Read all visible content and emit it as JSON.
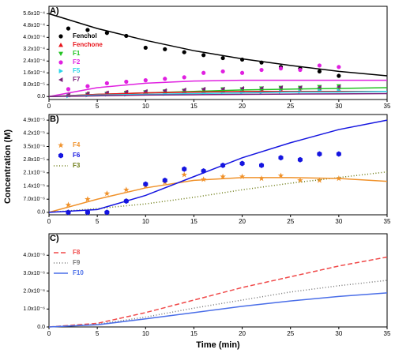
{
  "axis_labels": {
    "x": "Time (min)",
    "y": "Concentration (M)"
  },
  "chart_data": [
    {
      "type": "scatter",
      "panel_label": "A)",
      "xlim": [
        0,
        35
      ],
      "xticks": [
        0,
        5,
        10,
        15,
        20,
        25,
        30,
        35
      ],
      "ylim": [
        -2e-05,
        0.00061
      ],
      "yticks": [
        {
          "value": 0,
          "label": "0.0"
        },
        {
          "value": 8e-05,
          "label": "8.0x10⁻⁵"
        },
        {
          "value": 0.00016,
          "label": "1.6x10⁻⁴"
        },
        {
          "value": 0.00024,
          "label": "2.4x10⁻⁴"
        },
        {
          "value": 0.00032,
          "label": "3.2x10⁻⁴"
        },
        {
          "value": 0.0004,
          "label": "4.0x10⁻⁴"
        },
        {
          "value": 0.00048,
          "label": "4.8x10⁻⁴"
        },
        {
          "value": 0.00056,
          "label": "5.6x10⁻⁴"
        }
      ],
      "series": [
        {
          "name": "Fenchol",
          "color": "#000000",
          "marker": "circle",
          "x": [
            2,
            4,
            6,
            8,
            10,
            12,
            14,
            16,
            18,
            20,
            22,
            24,
            26,
            28,
            30
          ],
          "values": [
            0.00046,
            0.00045,
            0.00043,
            0.00041,
            0.00033,
            0.00032,
            0.0003,
            0.00028,
            0.00026,
            0.00025,
            0.00023,
            0.0002,
            0.00019,
            0.00017,
            0.00014
          ]
        },
        {
          "name": "Fenchone",
          "color": "#e8141b",
          "marker": "triangle",
          "x": [
            2,
            4,
            6,
            8,
            10,
            12,
            14,
            16,
            18,
            20,
            22,
            24,
            26,
            28,
            30
          ],
          "values": [
            1.5e-05,
            2e-05,
            2.5e-05,
            3e-05,
            3e-05,
            3.5e-05,
            3.5e-05,
            4e-05,
            4e-05,
            4e-05,
            4e-05,
            4.5e-05,
            4e-05,
            4.5e-05,
            4.5e-05
          ]
        },
        {
          "name": "F1",
          "color": "#22c322",
          "marker": "triangle-down",
          "x": [
            2,
            4,
            6,
            8,
            10,
            12,
            14,
            16,
            18,
            20,
            22,
            24,
            26,
            28,
            30
          ],
          "values": [
            1e-05,
            1.5e-05,
            2e-05,
            2.5e-05,
            3e-05,
            3.5e-05,
            4e-05,
            4.5e-05,
            5e-05,
            5e-05,
            5.5e-05,
            6e-05,
            6e-05,
            6.5e-05,
            7e-05
          ]
        },
        {
          "name": "F2",
          "color": "#e020e0",
          "marker": "circle",
          "x": [
            2,
            4,
            6,
            8,
            10,
            12,
            14,
            16,
            18,
            20,
            22,
            24,
            26,
            28,
            30
          ],
          "values": [
            5e-05,
            7e-05,
            9e-05,
            0.0001,
            0.00011,
            0.00012,
            0.00013,
            0.00016,
            0.00017,
            0.00016,
            0.00018,
            0.00019,
            0.00018,
            0.00021,
            0.0002
          ]
        },
        {
          "name": "F5",
          "color": "#2ad4e8",
          "marker": "triangle-right",
          "x": [
            2,
            4,
            6,
            8,
            10,
            12,
            14,
            16,
            18,
            20,
            22,
            24,
            26,
            28,
            30
          ],
          "values": [
            5e-06,
            1e-05,
            1.5e-05,
            1.5e-05,
            2e-05,
            2e-05,
            2.5e-05,
            2.5e-05,
            3e-05,
            3e-05,
            3e-05,
            3.5e-05,
            3.5e-05,
            4e-05,
            4e-05
          ]
        },
        {
          "name": "F7",
          "color": "#7a1f7a",
          "marker": "triangle-left",
          "x": [
            2,
            4,
            6,
            8,
            10,
            12,
            14,
            16,
            18,
            20,
            22,
            24,
            26,
            28,
            30
          ],
          "values": [
            1e-05,
            2e-05,
            2.5e-05,
            3e-05,
            3.5e-05,
            4e-05,
            4.5e-05,
            5e-05,
            5e-05,
            5.5e-05,
            5.5e-05,
            6e-05,
            6e-05,
            6e-05,
            6.5e-05
          ]
        },
        {
          "color": "#000000",
          "style": "solid",
          "x": [
            0,
            5,
            10,
            15,
            20,
            25,
            30,
            35
          ],
          "values": [
            0.00056,
            0.00046,
            0.00038,
            0.00031,
            0.000255,
            0.00021,
            0.00017,
            0.00014
          ]
        },
        {
          "color": "#e020e0",
          "style": "solid",
          "x": [
            0,
            5,
            10,
            15,
            20,
            25,
            30,
            35
          ],
          "values": [
            0,
            6e-05,
            9e-05,
            0.000105,
            0.00011,
            0.00011,
            0.00011,
            0.00011
          ]
        },
        {
          "color": "#22c322",
          "style": "solid",
          "x": [
            0,
            5,
            10,
            15,
            20,
            25,
            30,
            35
          ],
          "values": [
            0,
            1.5e-05,
            2.5e-05,
            3.5e-05,
            4.5e-05,
            5e-05,
            5.5e-05,
            6e-05
          ]
        },
        {
          "color": "#e8141b",
          "style": "solid",
          "x": [
            0,
            5,
            10,
            15,
            20,
            25,
            30,
            35
          ],
          "values": [
            0,
            1.5e-05,
            2.5e-05,
            3e-05,
            3.5e-05,
            3.5e-05,
            3.5e-05,
            3.5e-05
          ]
        },
        {
          "color": "#2ad4e8",
          "style": "solid",
          "x": [
            0,
            5,
            10,
            15,
            20,
            25,
            30,
            35
          ],
          "values": [
            0,
            1e-05,
            1.5e-05,
            2e-05,
            2.5e-05,
            3e-05,
            3e-05,
            3.5e-05
          ]
        },
        {
          "color": "#7a1f7a",
          "style": "solid",
          "x": [
            0,
            5,
            10,
            15,
            20,
            25,
            30,
            35
          ],
          "values": [
            0,
            5e-06,
            1e-05,
            1.2e-05,
            1.5e-05,
            1.7e-05,
            1.8e-05,
            2e-05
          ]
        }
      ]
    },
    {
      "type": "scatter",
      "panel_label": "B)",
      "xlim": [
        0,
        35
      ],
      "xticks": [
        0,
        5,
        10,
        15,
        20,
        25,
        30,
        35
      ],
      "ylim": [
        -1.3e-06,
        5.2e-05
      ],
      "yticks": [
        {
          "value": 0,
          "label": "0.0"
        },
        {
          "value": 7e-06,
          "label": "7.0x10⁻⁶"
        },
        {
          "value": 1.4e-05,
          "label": "1.4x10⁻⁵"
        },
        {
          "value": 2.1e-05,
          "label": "2.1x10⁻⁵"
        },
        {
          "value": 2.8e-05,
          "label": "2.8x10⁻⁵"
        },
        {
          "value": 3.5e-05,
          "label": "3.5x10⁻⁵"
        },
        {
          "value": 4.2e-05,
          "label": "4.2x10⁻⁵"
        },
        {
          "value": 4.9e-05,
          "label": "4.9x10⁻⁵"
        }
      ],
      "series": [
        {
          "name": "F4",
          "color": "#f0922b",
          "marker": "star",
          "x": [
            2,
            4,
            6,
            8,
            10,
            12,
            14,
            16,
            18,
            20,
            22,
            24,
            26,
            28,
            30
          ],
          "values": [
            4e-06,
            7e-06,
            1e-05,
            1.2e-05,
            1.4e-05,
            1.6e-05,
            2e-05,
            1.75e-05,
            1.9e-05,
            1.9e-05,
            1.8e-05,
            1.95e-05,
            1.7e-05,
            1.7e-05,
            1.8e-05
          ]
        },
        {
          "name": "F6",
          "color": "#1515e0",
          "marker": "hexagon",
          "x": [
            2,
            4,
            6,
            8,
            10,
            12,
            14,
            16,
            18,
            20,
            22,
            24,
            26,
            28,
            30
          ],
          "values": [
            0,
            0,
            0,
            6e-06,
            1.5e-05,
            1.7e-05,
            2.3e-05,
            2.2e-05,
            2.5e-05,
            2.6e-05,
            2.5e-05,
            2.9e-05,
            2.8e-05,
            3.1e-05,
            3.1e-05
          ]
        },
        {
          "name": "F3",
          "color": "#6b7a12",
          "style": "dot",
          "x": [
            0,
            5,
            10,
            15,
            20,
            25,
            30,
            35
          ],
          "values": [
            0,
            2e-06,
            4.5e-06,
            8e-06,
            1.2e-05,
            1.55e-05,
            1.85e-05,
            2.15e-05
          ]
        },
        {
          "color": "#f0922b",
          "style": "solid",
          "x": [
            0,
            5,
            10,
            15,
            20,
            25,
            30,
            35
          ],
          "values": [
            0,
            7e-06,
            1.3e-05,
            1.7e-05,
            1.85e-05,
            1.85e-05,
            1.8e-05,
            1.65e-05
          ]
        },
        {
          "color": "#1515e0",
          "style": "solid",
          "x": [
            0,
            5,
            10,
            15,
            20,
            25,
            30,
            35
          ],
          "values": [
            0,
            1.5e-06,
            9e-06,
            1.9e-05,
            2.9e-05,
            3.7e-05,
            4.4e-05,
            4.9e-05
          ]
        }
      ]
    },
    {
      "type": "line",
      "panel_label": "C)",
      "xlim": [
        0,
        35
      ],
      "xticks": [
        0,
        5,
        10,
        15,
        20,
        25,
        30,
        35
      ],
      "ylim": [
        0,
        5.2e-06
      ],
      "yticks": [
        {
          "value": 0,
          "label": "0.0"
        },
        {
          "value": 1e-06,
          "label": "1.0x10⁻⁶"
        },
        {
          "value": 2e-06,
          "label": "2.0x10⁻⁶"
        },
        {
          "value": 3e-06,
          "label": "3.0x10⁻⁶"
        },
        {
          "value": 4e-06,
          "label": "4.0x10⁻⁶"
        }
      ],
      "series": [
        {
          "name": "F8",
          "color": "#f04848",
          "style": "dash",
          "x": [
            0,
            5,
            10,
            15,
            20,
            25,
            30,
            35
          ],
          "values": [
            0,
            2e-07,
            8e-07,
            1.5e-06,
            2.2e-06,
            2.8e-06,
            3.4e-06,
            3.9e-06
          ]
        },
        {
          "name": "F9",
          "color": "#777777",
          "style": "dot",
          "x": [
            0,
            5,
            10,
            15,
            20,
            25,
            30,
            35
          ],
          "values": [
            0,
            1.5e-07,
            5.5e-07,
            1.05e-06,
            1.5e-06,
            1.95e-06,
            2.3e-06,
            2.6e-06
          ]
        },
        {
          "name": "F10",
          "color": "#4a6ee8",
          "style": "solid",
          "x": [
            0,
            5,
            10,
            15,
            20,
            25,
            30,
            35
          ],
          "values": [
            0,
            1.2e-07,
            4.5e-07,
            8e-07,
            1.15e-06,
            1.45e-06,
            1.7e-06,
            1.9e-06
          ]
        }
      ]
    }
  ]
}
